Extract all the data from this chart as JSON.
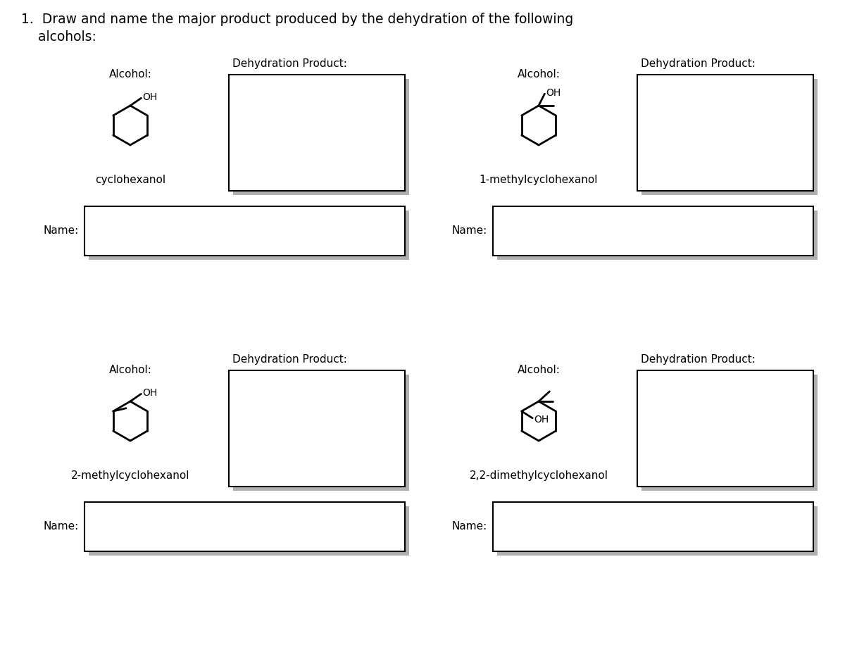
{
  "title_line1": "1.  Draw and name the major product produced by the dehydration of the following",
  "title_line2": "    alcohols:",
  "title_fontsize": 13.5,
  "background_color": "#ffffff",
  "text_color": "#000000",
  "box_border_color": "#000000",
  "shadow_color": "#b0b0b0",
  "label_fontsize": 11,
  "oh_fontsize": 10,
  "molecule_name_fontsize": 11,
  "panels": [
    {
      "id": "top_left",
      "col": 0,
      "row": 0,
      "alcohol_name": "cyclohexanol",
      "molecule_type": "cyclohexanol"
    },
    {
      "id": "top_right",
      "col": 1,
      "row": 0,
      "alcohol_name": "1-methylcyclohexanol",
      "molecule_type": "1-methylcyclohexanol"
    },
    {
      "id": "bottom_left",
      "col": 0,
      "row": 1,
      "alcohol_name": "2-methylcyclohexanol",
      "molecule_type": "2-methylcyclohexanol"
    },
    {
      "id": "bottom_right",
      "col": 1,
      "row": 1,
      "alcohol_name": "2,2-dimethylcyclohexanol",
      "molecule_type": "2,2-dimethylcyclohexanol"
    }
  ]
}
